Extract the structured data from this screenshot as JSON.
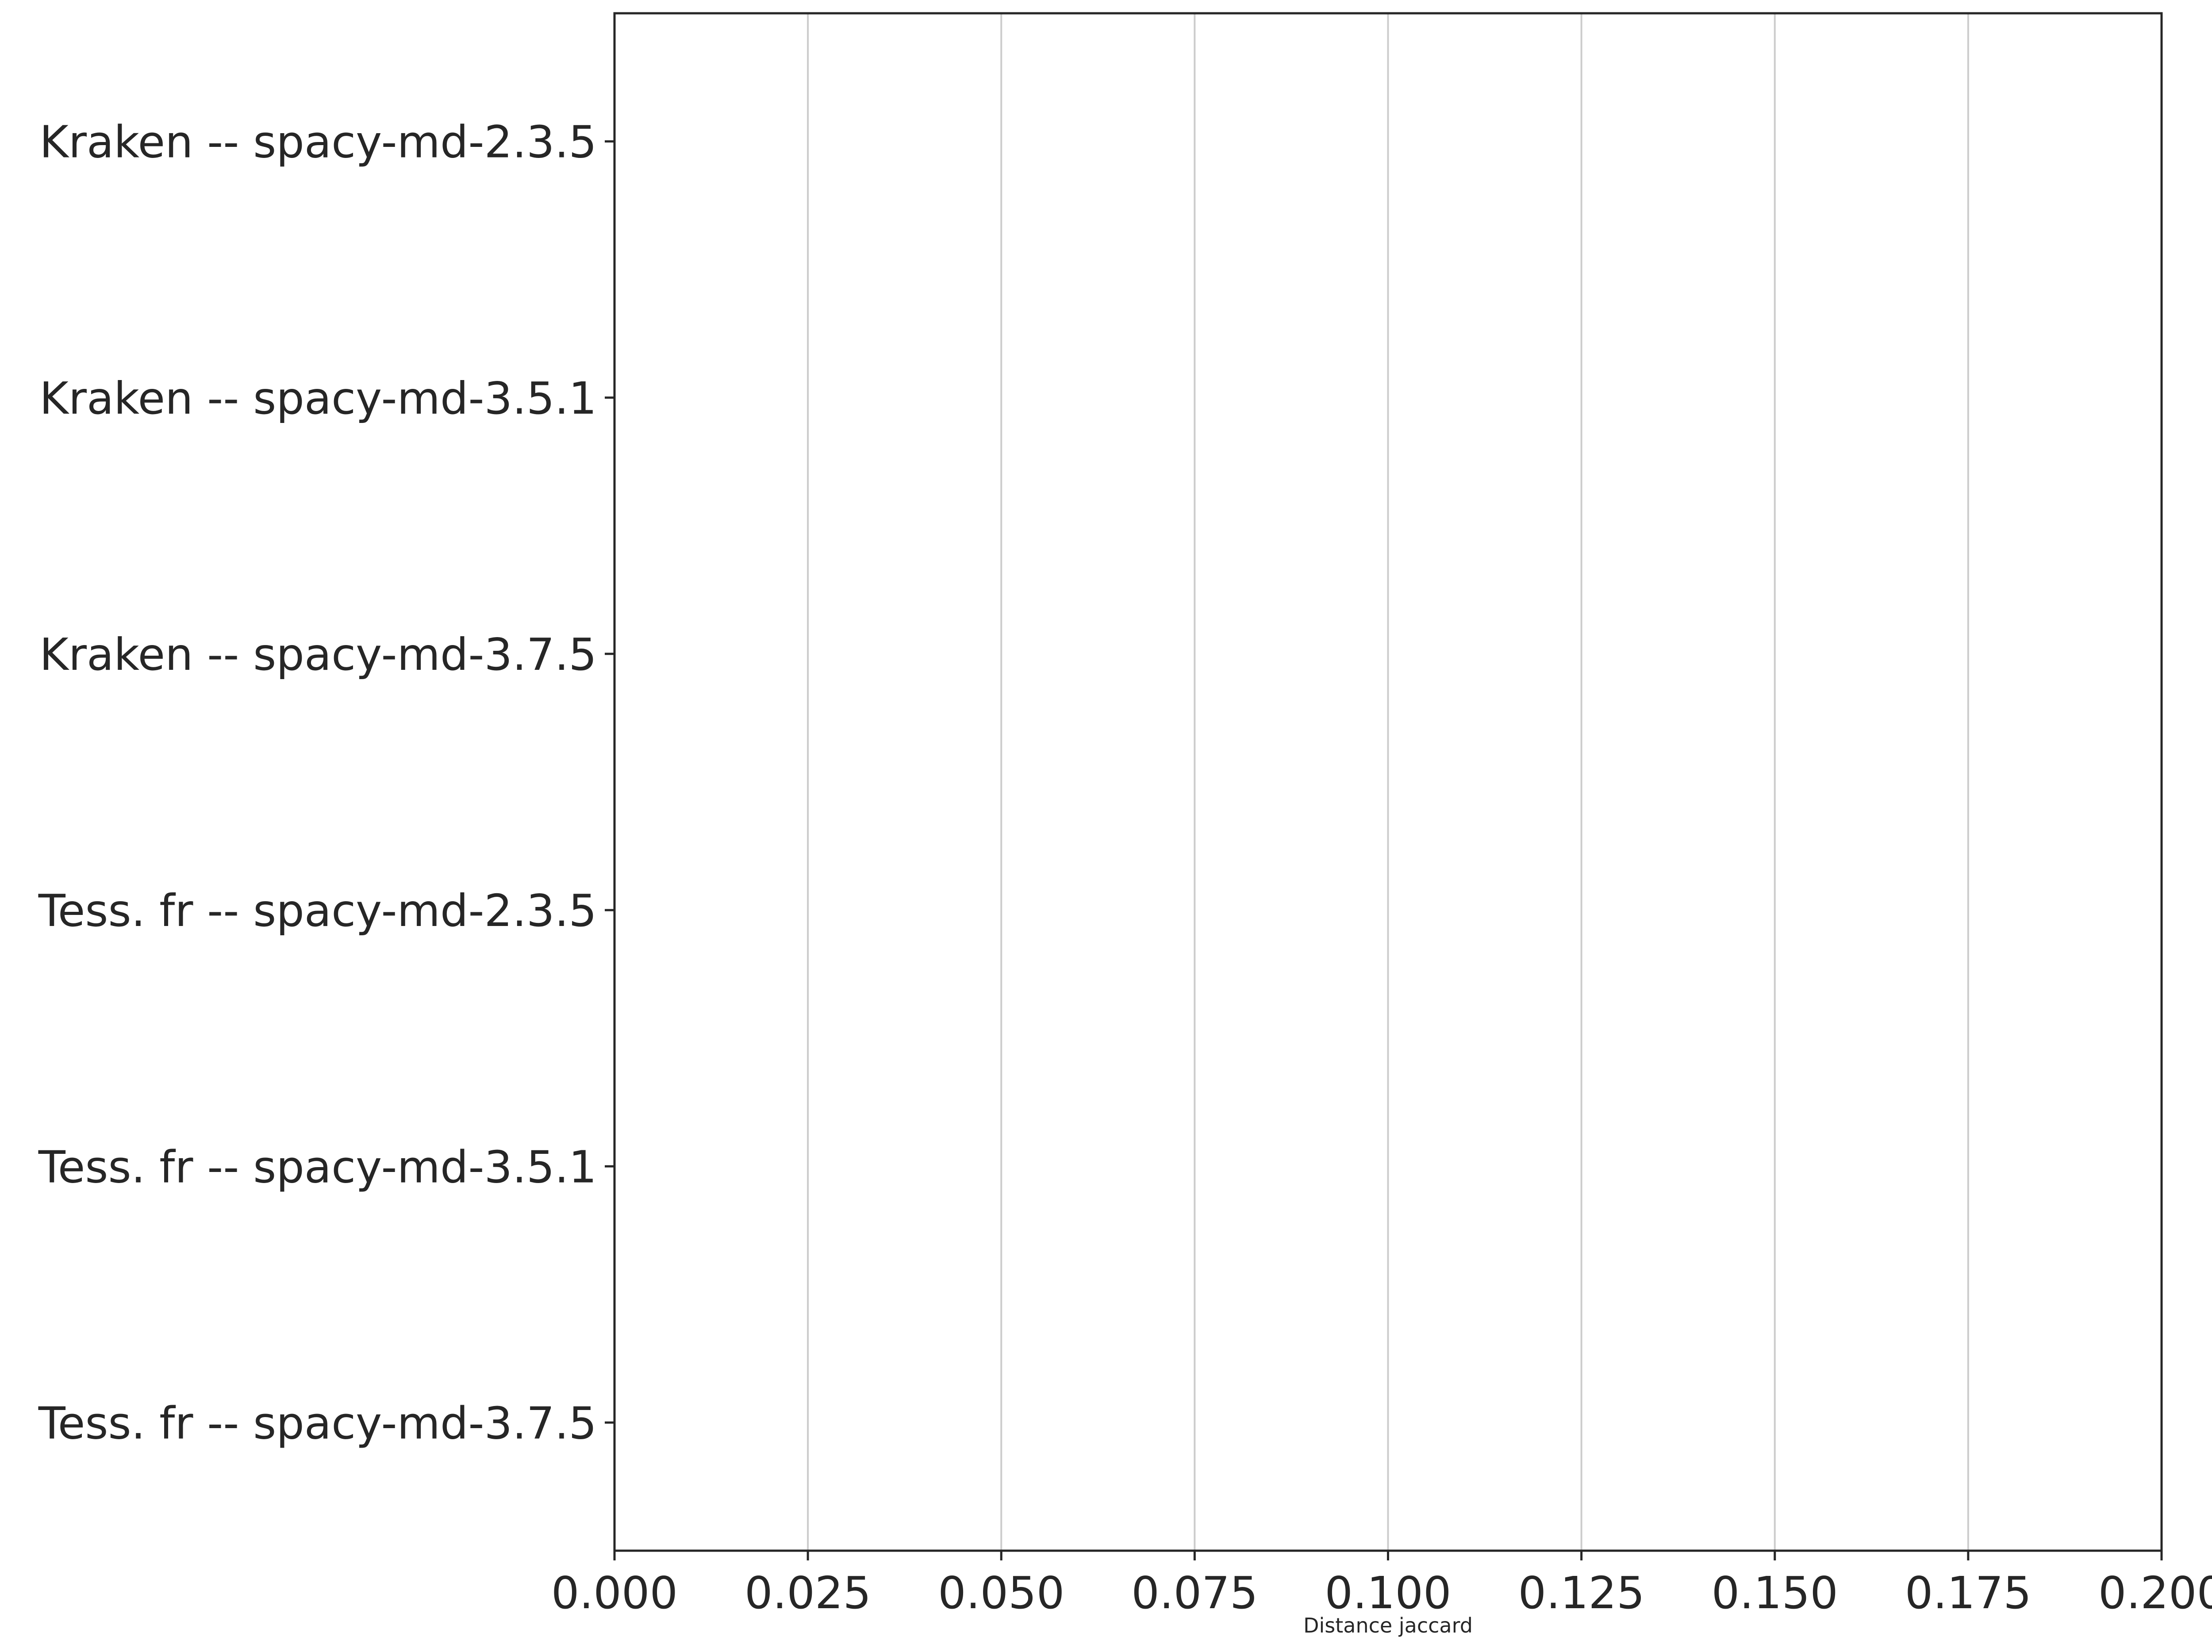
{
  "chart_data": {
    "type": "bar",
    "orientation": "horizontal",
    "categories": [
      "Kraken -- spacy-md-2.3.5",
      "Kraken -- spacy-md-3.5.1",
      "Kraken -- spacy-md-3.7.5",
      "Tess. fr -- spacy-md-2.3.5",
      "Tess. fr -- spacy-md-3.5.1",
      "Tess. fr -- spacy-md-3.7.5"
    ],
    "values": [
      0,
      0,
      0,
      0,
      0,
      0
    ],
    "title": "",
    "xlabel": "Distance jaccard",
    "ylabel": "",
    "xlim": [
      0,
      0.2
    ],
    "xticks": [
      "0.000",
      "0.025",
      "0.050",
      "0.075",
      "0.100",
      "0.125",
      "0.150",
      "0.175",
      "0.200"
    ],
    "grid": "vertical",
    "legend": "none",
    "colors": {
      "grid": "#cccccc",
      "axis": "#262626",
      "text": "#262626",
      "background": "#ffffff"
    }
  }
}
